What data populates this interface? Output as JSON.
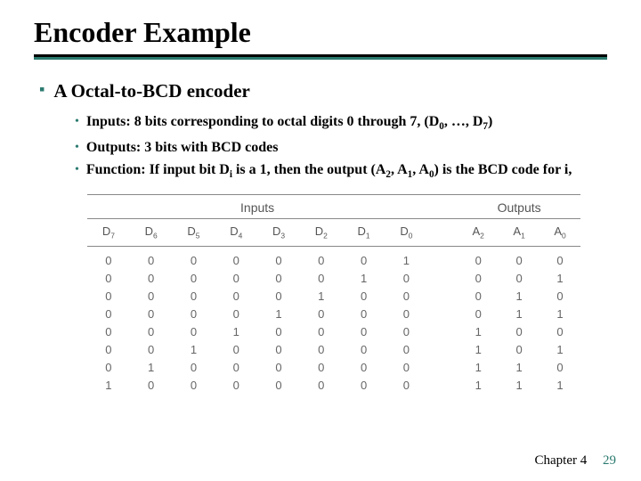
{
  "title": "Encoder Example",
  "section": {
    "heading": "A Octal-to-BCD encoder",
    "items": [
      {
        "html": "Inputs: 8 bits corresponding to octal digits 0 through 7, (D<sub>0</sub>, …, D<sub>7</sub>)"
      },
      {
        "html": "Outputs: 3 bits with BCD codes"
      },
      {
        "html": "Function: If input bit D<sub>i</sub> is a 1, then the output (A<sub>2</sub>, A<sub>1</sub>, A<sub>0</sub>) is the BCD code for i,"
      }
    ]
  },
  "table": {
    "group_headers": {
      "inputs": "Inputs",
      "outputs": "Outputs"
    },
    "input_cols": [
      "D<sub>7</sub>",
      "D<sub>6</sub>",
      "D<sub>5</sub>",
      "D<sub>4</sub>",
      "D<sub>3</sub>",
      "D<sub>2</sub>",
      "D<sub>1</sub>",
      "D<sub>0</sub>"
    ],
    "output_cols": [
      "A<sub>2</sub>",
      "A<sub>1</sub>",
      "A<sub>0</sub>"
    ],
    "rows": [
      {
        "in": [
          0,
          0,
          0,
          0,
          0,
          0,
          0,
          1
        ],
        "out": [
          0,
          0,
          0
        ]
      },
      {
        "in": [
          0,
          0,
          0,
          0,
          0,
          0,
          1,
          0
        ],
        "out": [
          0,
          0,
          1
        ]
      },
      {
        "in": [
          0,
          0,
          0,
          0,
          0,
          1,
          0,
          0
        ],
        "out": [
          0,
          1,
          0
        ]
      },
      {
        "in": [
          0,
          0,
          0,
          0,
          1,
          0,
          0,
          0
        ],
        "out": [
          0,
          1,
          1
        ]
      },
      {
        "in": [
          0,
          0,
          0,
          1,
          0,
          0,
          0,
          0
        ],
        "out": [
          1,
          0,
          0
        ]
      },
      {
        "in": [
          0,
          0,
          1,
          0,
          0,
          0,
          0,
          0
        ],
        "out": [
          1,
          0,
          1
        ]
      },
      {
        "in": [
          0,
          1,
          0,
          0,
          0,
          0,
          0,
          0
        ],
        "out": [
          1,
          1,
          0
        ]
      },
      {
        "in": [
          1,
          0,
          0,
          0,
          0,
          0,
          0,
          0
        ],
        "out": [
          1,
          1,
          1
        ]
      }
    ]
  },
  "footer": {
    "chapter": "Chapter 4",
    "page": "29"
  },
  "colors": {
    "accent": "#2b7a6f",
    "text": "#000000",
    "table_text": "#666666",
    "table_border": "#888888"
  }
}
